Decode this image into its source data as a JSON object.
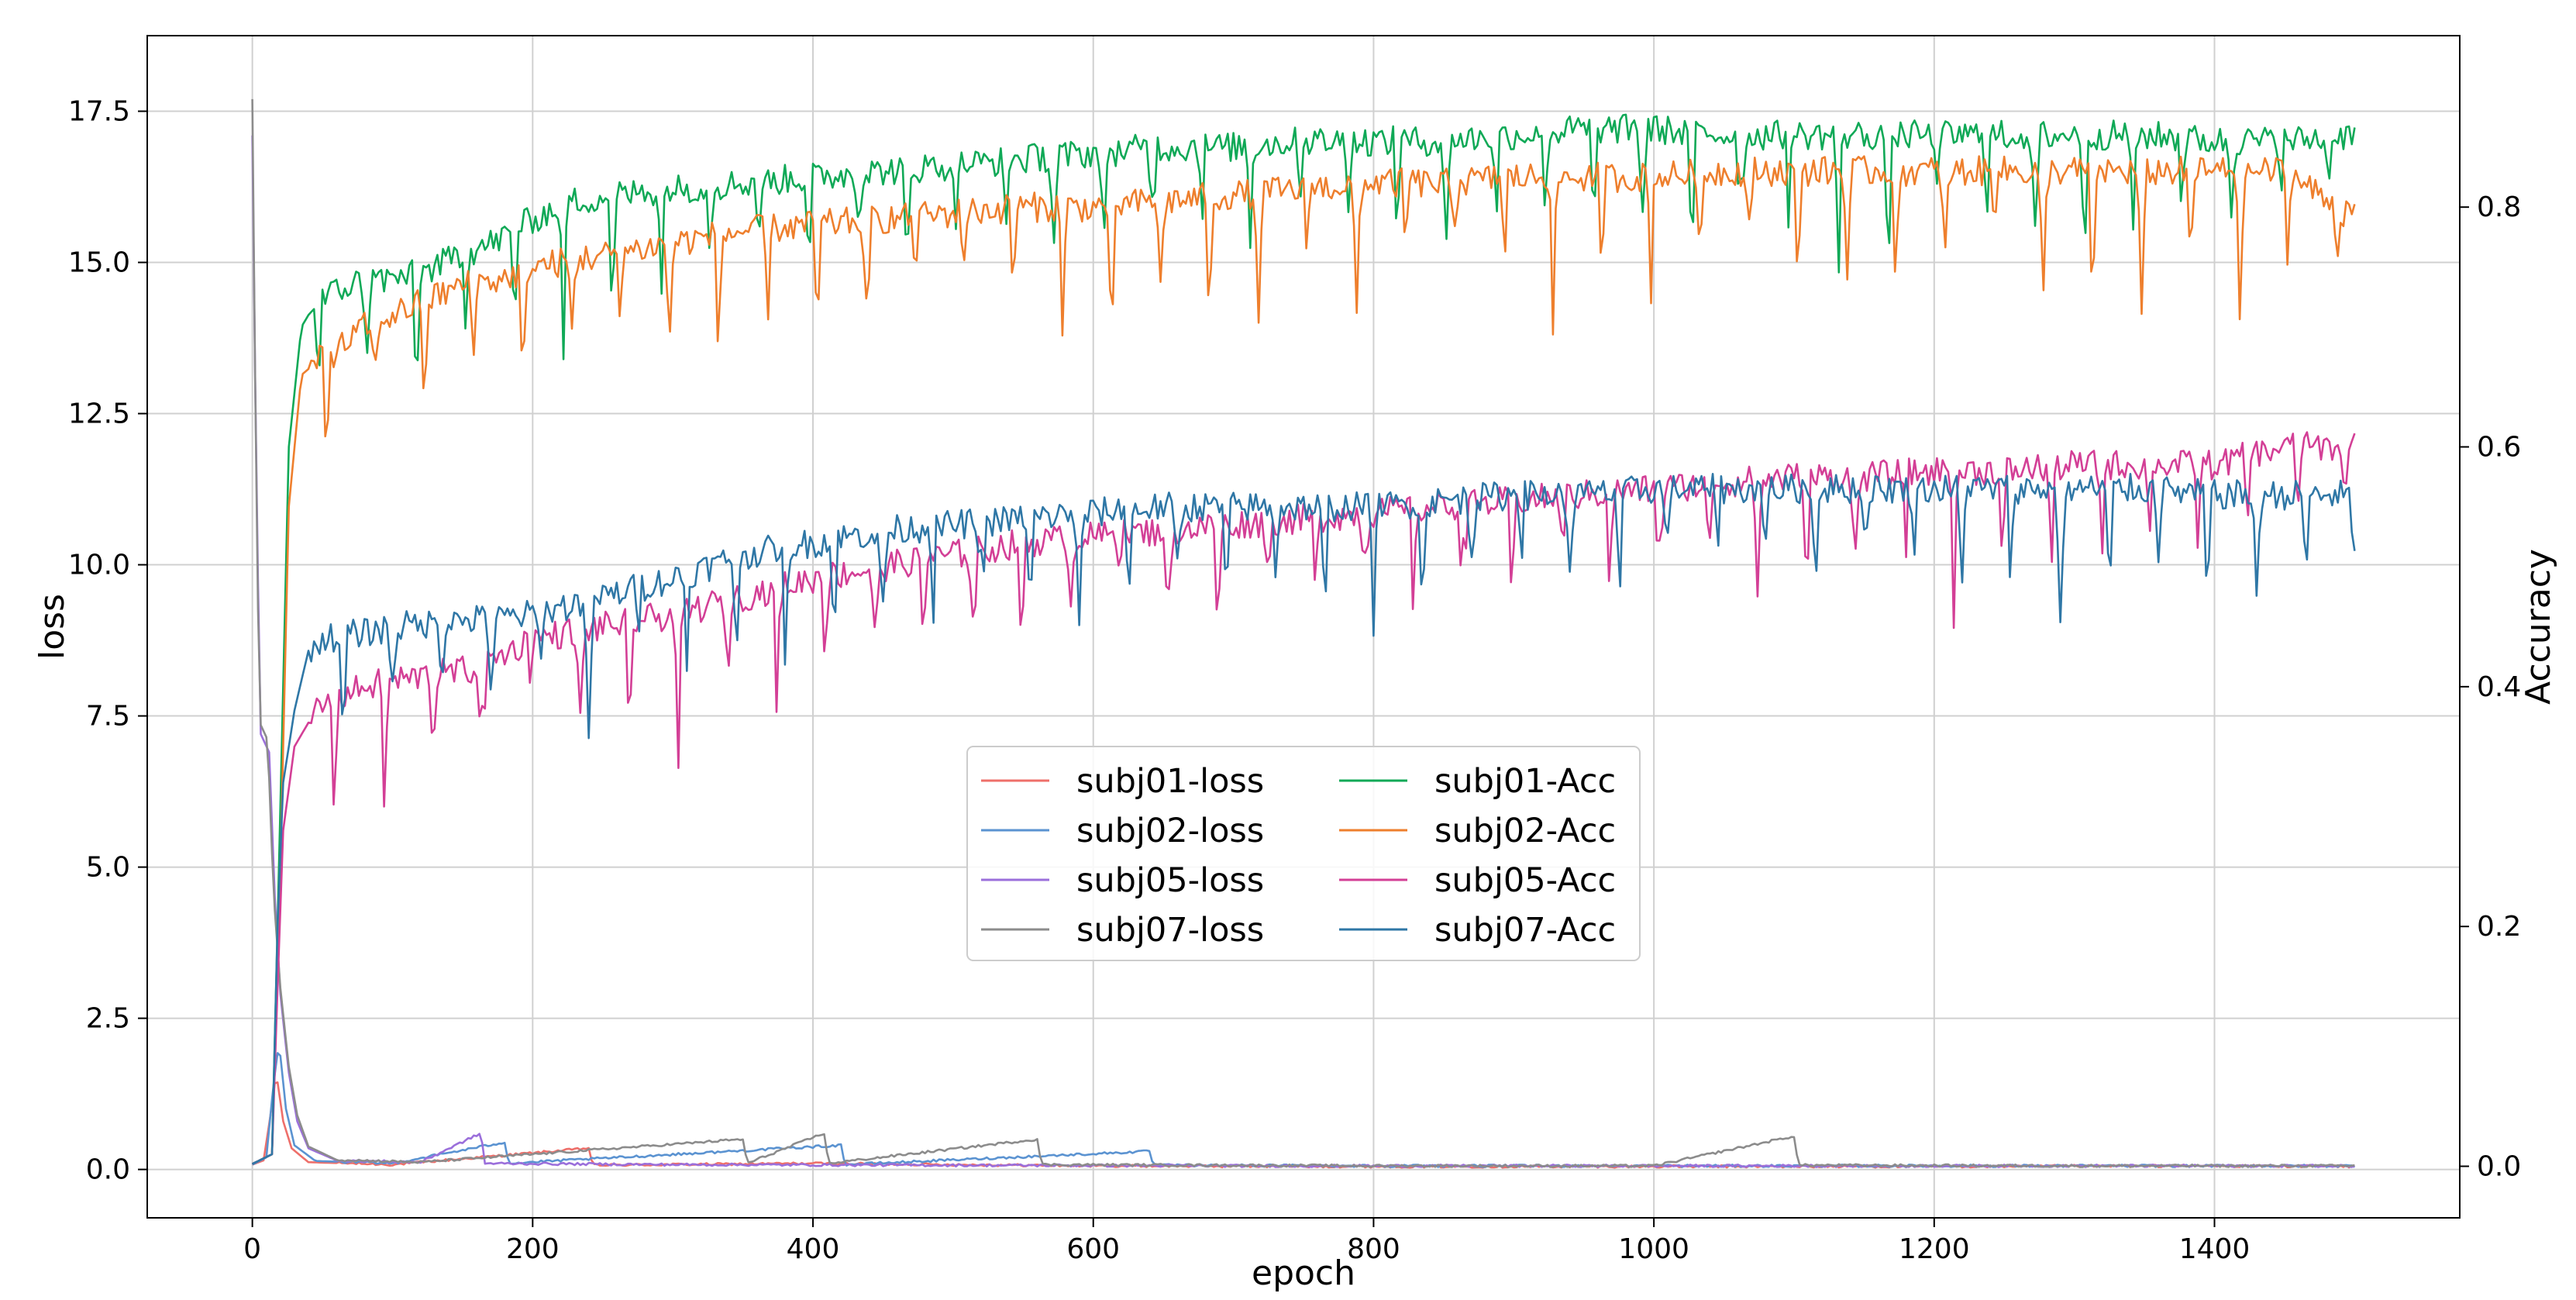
{
  "chart_data": {
    "type": "line",
    "title": "",
    "xlabel": "epoch",
    "ylabel_left": "loss",
    "ylabel_right": "Accuracy",
    "xlim": [
      -75,
      1575
    ],
    "ylim_left": [
      -0.8,
      18.75
    ],
    "ylim_right": [
      -0.043,
      0.943
    ],
    "x_ticks": [
      0,
      200,
      400,
      600,
      800,
      1000,
      1200,
      1400
    ],
    "y_ticks_left": [
      "0.0",
      "2.5",
      "5.0",
      "7.5",
      "10.0",
      "12.5",
      "15.0",
      "17.5"
    ],
    "y_ticks_right": [
      "0.0",
      "0.2",
      "0.4",
      "0.6",
      "0.8"
    ],
    "grid": true,
    "legend_placement": "center",
    "legend_columns": 2,
    "series": [
      {
        "name": "subj01-loss",
        "axis": "left",
        "color": "#ee6f6a",
        "points": [
          [
            0,
            0.08
          ],
          [
            8,
            0.15
          ],
          [
            13,
            0.9
          ],
          [
            17,
            1.6
          ],
          [
            22,
            0.8
          ],
          [
            28,
            0.35
          ],
          [
            40,
            0.12
          ],
          [
            100,
            0.08
          ],
          [
            240,
            0.35
          ],
          [
            243,
            0.07
          ],
          [
            400,
            0.1
          ],
          [
            600,
            0.06
          ],
          [
            800,
            0.05
          ],
          [
            1000,
            0.05
          ],
          [
            1200,
            0.05
          ],
          [
            1400,
            0.06
          ],
          [
            1500,
            0.05
          ]
        ]
      },
      {
        "name": "subj02-loss",
        "axis": "left",
        "color": "#5b93d1",
        "points": [
          [
            0,
            0.08
          ],
          [
            10,
            0.2
          ],
          [
            15,
            1.4
          ],
          [
            19,
            2.1
          ],
          [
            24,
            1.0
          ],
          [
            30,
            0.4
          ],
          [
            45,
            0.14
          ],
          [
            100,
            0.1
          ],
          [
            180,
            0.45
          ],
          [
            183,
            0.1
          ],
          [
            420,
            0.4
          ],
          [
            423,
            0.08
          ],
          [
            640,
            0.3
          ],
          [
            643,
            0.07
          ],
          [
            800,
            0.06
          ],
          [
            1000,
            0.06
          ],
          [
            1200,
            0.06
          ],
          [
            1400,
            0.06
          ],
          [
            1500,
            0.06
          ]
        ]
      },
      {
        "name": "subj05-loss",
        "axis": "left",
        "color": "#9b6fdb",
        "points": [
          [
            0,
            17.1
          ],
          [
            3,
            11.0
          ],
          [
            6,
            7.2
          ],
          [
            12,
            6.9
          ],
          [
            16,
            4.5
          ],
          [
            20,
            2.9
          ],
          [
            26,
            1.6
          ],
          [
            32,
            0.8
          ],
          [
            40,
            0.35
          ],
          [
            60,
            0.15
          ],
          [
            120,
            0.12
          ],
          [
            163,
            0.6
          ],
          [
            166,
            0.1
          ],
          [
            300,
            0.08
          ],
          [
            500,
            0.07
          ],
          [
            700,
            0.06
          ],
          [
            900,
            0.06
          ],
          [
            1100,
            0.06
          ],
          [
            1300,
            0.06
          ],
          [
            1500,
            0.06
          ]
        ]
      },
      {
        "name": "subj07-loss",
        "axis": "left",
        "color": "#8c8c8c",
        "points": [
          [
            0,
            17.7
          ],
          [
            2,
            13.0
          ],
          [
            5,
            7.4
          ],
          [
            11,
            7.1
          ],
          [
            15,
            4.6
          ],
          [
            20,
            3.0
          ],
          [
            26,
            1.7
          ],
          [
            32,
            0.9
          ],
          [
            40,
            0.38
          ],
          [
            60,
            0.16
          ],
          [
            120,
            0.12
          ],
          [
            350,
            0.5
          ],
          [
            353,
            0.1
          ],
          [
            408,
            0.6
          ],
          [
            411,
            0.1
          ],
          [
            560,
            0.5
          ],
          [
            563,
            0.08
          ],
          [
            800,
            0.06
          ],
          [
            1000,
            0.06
          ],
          [
            1100,
            0.55
          ],
          [
            1103,
            0.07
          ],
          [
            1300,
            0.06
          ],
          [
            1500,
            0.06
          ]
        ]
      },
      {
        "name": "subj01-Acc",
        "axis": "right",
        "color": "#10a957",
        "points": [
          [
            0,
            0.002
          ],
          [
            14,
            0.01
          ],
          [
            20,
            0.3
          ],
          [
            26,
            0.6
          ],
          [
            35,
            0.7
          ],
          [
            45,
            0.72
          ],
          [
            60,
            0.73
          ],
          [
            80,
            0.74
          ],
          [
            100,
            0.74
          ],
          [
            120,
            0.745
          ],
          [
            150,
            0.76
          ],
          [
            180,
            0.775
          ],
          [
            200,
            0.79
          ],
          [
            230,
            0.805
          ],
          [
            260,
            0.81
          ],
          [
            300,
            0.815
          ],
          [
            350,
            0.82
          ],
          [
            400,
            0.825
          ],
          [
            450,
            0.83
          ],
          [
            500,
            0.835
          ],
          [
            550,
            0.84
          ],
          [
            600,
            0.845
          ],
          [
            650,
            0.85
          ],
          [
            700,
            0.85
          ],
          [
            750,
            0.855
          ],
          [
            800,
            0.855
          ],
          [
            850,
            0.855
          ],
          [
            900,
            0.86
          ],
          [
            950,
            0.865
          ],
          [
            1000,
            0.865
          ],
          [
            1050,
            0.86
          ],
          [
            1100,
            0.86
          ],
          [
            1150,
            0.86
          ],
          [
            1200,
            0.86
          ],
          [
            1250,
            0.86
          ],
          [
            1300,
            0.86
          ],
          [
            1350,
            0.86
          ],
          [
            1400,
            0.855
          ],
          [
            1450,
            0.855
          ],
          [
            1500,
            0.86
          ]
        ]
      },
      {
        "name": "subj02-Acc",
        "axis": "right",
        "color": "#ee7f2d",
        "points": [
          [
            0,
            0.002
          ],
          [
            14,
            0.01
          ],
          [
            20,
            0.25
          ],
          [
            26,
            0.55
          ],
          [
            35,
            0.66
          ],
          [
            45,
            0.67
          ],
          [
            60,
            0.68
          ],
          [
            80,
            0.7
          ],
          [
            100,
            0.71
          ],
          [
            120,
            0.72
          ],
          [
            150,
            0.735
          ],
          [
            180,
            0.74
          ],
          [
            200,
            0.75
          ],
          [
            250,
            0.76
          ],
          [
            300,
            0.77
          ],
          [
            350,
            0.78
          ],
          [
            400,
            0.785
          ],
          [
            450,
            0.79
          ],
          [
            500,
            0.795
          ],
          [
            550,
            0.8
          ],
          [
            600,
            0.8
          ],
          [
            650,
            0.805
          ],
          [
            700,
            0.81
          ],
          [
            750,
            0.815
          ],
          [
            800,
            0.82
          ],
          [
            850,
            0.82
          ],
          [
            900,
            0.825
          ],
          [
            950,
            0.825
          ],
          [
            1000,
            0.825
          ],
          [
            1050,
            0.83
          ],
          [
            1100,
            0.83
          ],
          [
            1150,
            0.83
          ],
          [
            1200,
            0.83
          ],
          [
            1250,
            0.83
          ],
          [
            1300,
            0.83
          ],
          [
            1350,
            0.83
          ],
          [
            1400,
            0.83
          ],
          [
            1450,
            0.83
          ],
          [
            1500,
            0.79
          ]
        ]
      },
      {
        "name": "subj05-Acc",
        "axis": "right",
        "color": "#d33f96",
        "points": [
          [
            0,
            0.002
          ],
          [
            14,
            0.01
          ],
          [
            18,
            0.15
          ],
          [
            22,
            0.28
          ],
          [
            30,
            0.35
          ],
          [
            45,
            0.38
          ],
          [
            60,
            0.39
          ],
          [
            80,
            0.4
          ],
          [
            100,
            0.405
          ],
          [
            130,
            0.41
          ],
          [
            160,
            0.415
          ],
          [
            200,
            0.44
          ],
          [
            250,
            0.45
          ],
          [
            300,
            0.46
          ],
          [
            350,
            0.475
          ],
          [
            400,
            0.49
          ],
          [
            450,
            0.5
          ],
          [
            500,
            0.51
          ],
          [
            550,
            0.52
          ],
          [
            600,
            0.525
          ],
          [
            650,
            0.53
          ],
          [
            700,
            0.535
          ],
          [
            750,
            0.54
          ],
          [
            800,
            0.545
          ],
          [
            850,
            0.55
          ],
          [
            900,
            0.555
          ],
          [
            950,
            0.56
          ],
          [
            1000,
            0.565
          ],
          [
            1050,
            0.57
          ],
          [
            1100,
            0.575
          ],
          [
            1150,
            0.575
          ],
          [
            1200,
            0.58
          ],
          [
            1250,
            0.58
          ],
          [
            1300,
            0.585
          ],
          [
            1350,
            0.585
          ],
          [
            1400,
            0.585
          ],
          [
            1450,
            0.6
          ],
          [
            1500,
            0.6
          ]
        ]
      },
      {
        "name": "subj07-Acc",
        "axis": "right",
        "color": "#2f77a6",
        "points": [
          [
            0,
            0.002
          ],
          [
            14,
            0.01
          ],
          [
            18,
            0.2
          ],
          [
            22,
            0.32
          ],
          [
            30,
            0.38
          ],
          [
            40,
            0.43
          ],
          [
            50,
            0.44
          ],
          [
            80,
            0.445
          ],
          [
            100,
            0.45
          ],
          [
            150,
            0.455
          ],
          [
            200,
            0.46
          ],
          [
            250,
            0.475
          ],
          [
            300,
            0.49
          ],
          [
            350,
            0.51
          ],
          [
            400,
            0.52
          ],
          [
            450,
            0.53
          ],
          [
            500,
            0.535
          ],
          [
            550,
            0.54
          ],
          [
            600,
            0.545
          ],
          [
            650,
            0.55
          ],
          [
            700,
            0.55
          ],
          [
            750,
            0.55
          ],
          [
            800,
            0.55
          ],
          [
            850,
            0.555
          ],
          [
            900,
            0.56
          ],
          [
            950,
            0.56
          ],
          [
            1000,
            0.565
          ],
          [
            1050,
            0.565
          ],
          [
            1100,
            0.565
          ],
          [
            1150,
            0.565
          ],
          [
            1200,
            0.565
          ],
          [
            1250,
            0.565
          ],
          [
            1300,
            0.565
          ],
          [
            1350,
            0.565
          ],
          [
            1400,
            0.56
          ],
          [
            1450,
            0.56
          ],
          [
            1500,
            0.56
          ]
        ]
      }
    ]
  }
}
